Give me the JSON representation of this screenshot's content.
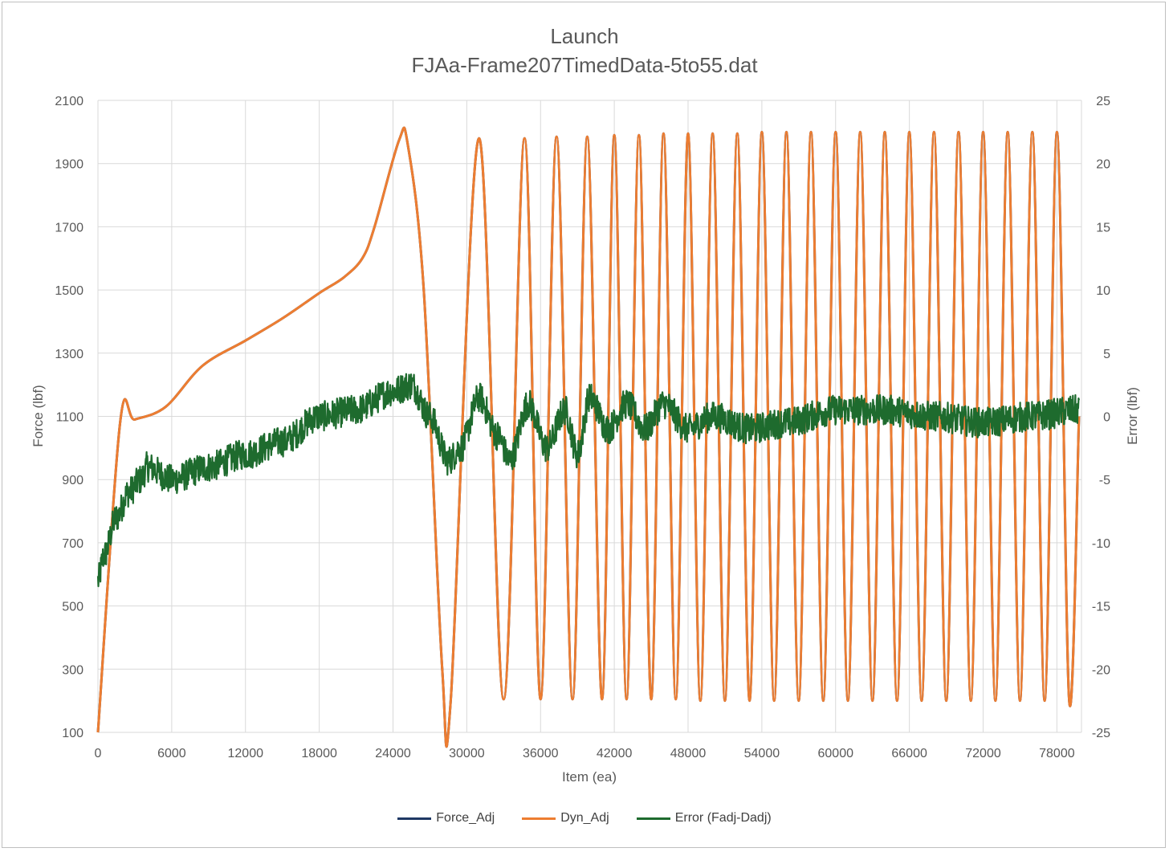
{
  "chart_data": {
    "type": "line",
    "title": "Launch",
    "subtitle": "FJAa-Frame207TimedData-5to55.dat",
    "xlabel": "Item (ea)",
    "ylabel": "Force (lbf)",
    "y2label": "Error (lbf)",
    "xlim": [
      0,
      80000
    ],
    "ylim": [
      100,
      2100
    ],
    "y2lim": [
      -25,
      25
    ],
    "x_ticks": [
      "0",
      "6000",
      "12000",
      "18000",
      "24000",
      "30000",
      "36000",
      "42000",
      "48000",
      "54000",
      "60000",
      "66000",
      "72000",
      "78000"
    ],
    "y_ticks": [
      "100",
      "300",
      "500",
      "700",
      "900",
      "1100",
      "1300",
      "1500",
      "1700",
      "1900",
      "2100"
    ],
    "y2_ticks": [
      "-25",
      "-20",
      "-15",
      "-10",
      "-5",
      "0",
      "5",
      "10",
      "15",
      "20",
      "25"
    ],
    "grid": true,
    "legend_position": "bottom",
    "series": [
      {
        "name": "Force_Adj",
        "axis": "left",
        "color": "#1f3864",
        "x": [
          0,
          1800,
          3000,
          5500,
          8500,
          12000,
          15000,
          18000,
          20000,
          21500,
          22500,
          24500,
          25200,
          26500,
          28000,
          28700,
          31000,
          33000,
          34700,
          36000,
          37300,
          38600,
          39800,
          41000,
          42000,
          43000,
          44000,
          45000,
          46000,
          47000,
          48000,
          49000,
          50000,
          51000,
          52000,
          53000,
          54000,
          55000,
          56000,
          57000,
          58000,
          59000,
          60000,
          61000,
          62000,
          63000,
          64000,
          65000,
          66000,
          67000,
          68000,
          69000,
          70000,
          71000,
          72000,
          73000,
          74000,
          75000,
          76000,
          77000,
          78000,
          79000,
          79800
        ],
        "y": [
          100,
          1080,
          1090,
          1130,
          1260,
          1340,
          1410,
          1490,
          1540,
          1600,
          1700,
          1975,
          1960,
          1500,
          300,
          205,
          1980,
          205,
          1980,
          205,
          1985,
          205,
          1985,
          205,
          1990,
          205,
          1990,
          205,
          1995,
          205,
          1995,
          200,
          1995,
          200,
          1995,
          200,
          2000,
          200,
          2000,
          200,
          2000,
          200,
          2000,
          200,
          2000,
          200,
          2000,
          200,
          2000,
          200,
          2000,
          200,
          2000,
          200,
          2000,
          200,
          2000,
          200,
          2000,
          200,
          2000,
          200,
          1100
        ]
      },
      {
        "name": "Dyn_Adj",
        "axis": "left",
        "color": "#ed7d31",
        "x": [
          0,
          1800,
          3000,
          5500,
          8500,
          12000,
          15000,
          18000,
          20000,
          21500,
          22500,
          24500,
          25200,
          26500,
          28000,
          28700,
          31000,
          33000,
          34700,
          36000,
          37300,
          38600,
          39800,
          41000,
          42000,
          43000,
          44000,
          45000,
          46000,
          47000,
          48000,
          49000,
          50000,
          51000,
          52000,
          53000,
          54000,
          55000,
          56000,
          57000,
          58000,
          59000,
          60000,
          61000,
          62000,
          63000,
          64000,
          65000,
          66000,
          67000,
          68000,
          69000,
          70000,
          71000,
          72000,
          73000,
          74000,
          75000,
          76000,
          77000,
          78000,
          79000,
          79800
        ],
        "y": [
          100,
          1080,
          1090,
          1130,
          1260,
          1340,
          1410,
          1490,
          1540,
          1600,
          1700,
          1975,
          1960,
          1500,
          300,
          205,
          1980,
          205,
          1980,
          205,
          1985,
          205,
          1985,
          205,
          1990,
          205,
          1990,
          205,
          1995,
          205,
          1995,
          200,
          1995,
          200,
          1995,
          200,
          2000,
          200,
          2000,
          200,
          2000,
          200,
          2000,
          200,
          2000,
          200,
          2000,
          200,
          2000,
          200,
          2000,
          200,
          2000,
          200,
          2000,
          200,
          2000,
          200,
          2000,
          200,
          2000,
          200,
          1100
        ]
      },
      {
        "name": "Error (Fadj-Dadj)",
        "axis": "right",
        "color": "#1e6b2e",
        "x": [
          0,
          500,
          1500,
          2500,
          3500,
          4000,
          6000,
          9000,
          12000,
          15000,
          18000,
          21000,
          24000,
          25500,
          27000,
          28500,
          29500,
          31000,
          32500,
          33500,
          35000,
          36500,
          38000,
          39000,
          40000,
          41500,
          43000,
          44500,
          46000,
          48000,
          50000,
          53000,
          56000,
          60000,
          64000,
          68000,
          72000,
          76000,
          79800
        ],
        "y": [
          -13,
          -11,
          -8,
          -6,
          -5,
          -4,
          -5,
          -4,
          -3,
          -2,
          0,
          0.5,
          2,
          2.5,
          0,
          -3.5,
          -2.5,
          1.5,
          -1.5,
          -3.5,
          1,
          -2.5,
          0.5,
          -3,
          1.5,
          -1,
          1,
          -1,
          1,
          -1,
          0,
          -1,
          -0.5,
          0.5,
          0.5,
          0,
          -0.5,
          0,
          0.5
        ]
      }
    ]
  }
}
